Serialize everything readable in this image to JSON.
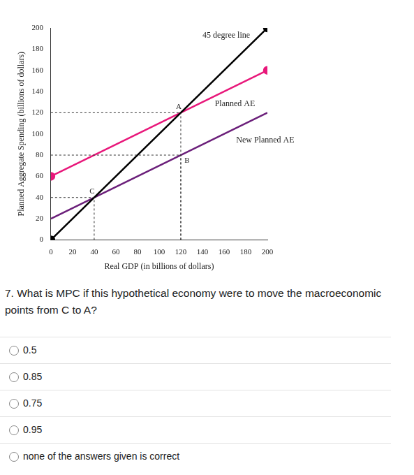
{
  "chart_data": {
    "type": "line",
    "x_label": "Real GDP (in billions of dollars)",
    "y_label": "Planned Aggregate Spending (billions of dollars)",
    "series": [
      {
        "name": "45 degree line",
        "color": "#000000",
        "marker": "endpoints",
        "x": [
          0,
          200
        ],
        "values": [
          0,
          200
        ]
      },
      {
        "name": "Planned AE",
        "color": "#e8177a",
        "marker": "endpoints",
        "x": [
          0,
          200
        ],
        "values": [
          60,
          160
        ]
      },
      {
        "name": "New Planned AE",
        "color": "#6b1f7a",
        "marker": "none",
        "x": [
          0,
          200
        ],
        "values": [
          20,
          120
        ]
      }
    ],
    "annotations": [
      {
        "text": "A",
        "x": 120,
        "y": 120
      },
      {
        "text": "B",
        "x": 120,
        "y": 80
      },
      {
        "text": "C",
        "x": 40,
        "y": 40
      }
    ],
    "xlim": [
      0,
      200
    ],
    "ylim": [
      0,
      200
    ],
    "xticks": [
      0,
      20,
      40,
      60,
      80,
      100,
      120,
      140,
      160,
      180,
      200
    ],
    "yticks": [
      0,
      20,
      40,
      60,
      80,
      100,
      120,
      140,
      160,
      180,
      200
    ],
    "grid": false
  },
  "question": "7. What is MPC if this hypothetical economy were to move the macroeconomic points from C to A?",
  "options": [
    "0.5",
    "0.85",
    "0.75",
    "0.95",
    "none of the answers given is correct"
  ]
}
